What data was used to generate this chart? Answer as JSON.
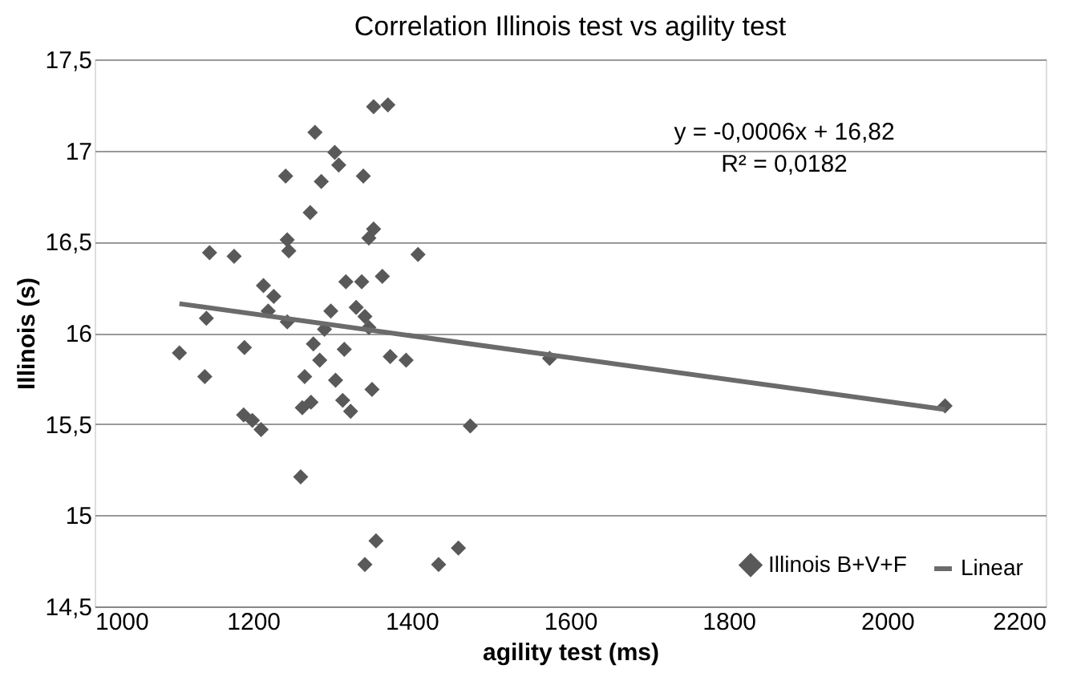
{
  "chart_data": {
    "type": "scatter",
    "title": "Correlation Illinois  test vs agility test",
    "xlabel": "agility test (ms)",
    "ylabel": "Illinois (s)",
    "annotations": [
      "y = -0,0006x + 16,82",
      "R² = 0,0182"
    ],
    "xlim": [
      1000,
      2200
    ],
    "xticks": [
      1000,
      1200,
      1400,
      1600,
      1800,
      2000,
      2200
    ],
    "ylim": [
      14.5,
      17.5
    ],
    "yticks": [
      {
        "value": 14.5,
        "label": "14,5"
      },
      15,
      {
        "value": 15.5,
        "label": "15,5"
      },
      16,
      {
        "value": 16.5,
        "label": "16,5"
      },
      17,
      {
        "value": 17.5,
        "label": "17,5"
      }
    ],
    "grid": "y",
    "legend": "bottom right",
    "series": [
      {
        "name": "Illinois B+V+F",
        "marker": "diamond",
        "color": "#595959",
        "x": [
          1352,
          1370,
          1278,
          1303,
          1308,
          1241,
          1286,
          1339,
          1272,
          1352,
          1346,
          1243,
          1245,
          1145,
          1176,
          1408,
          1317,
          1337,
          1363,
          1213,
          1226,
          1219,
          1243,
          1330,
          1341,
          1346,
          1298,
          1141,
          1290,
          1276,
          1284,
          1315,
          1189,
          1107,
          1139,
          1265,
          1304,
          1350,
          1373,
          1393,
          1262,
          1273,
          1313,
          1323,
          1188,
          1199,
          1210,
          1260,
          1355,
          1341,
          1434,
          1459,
          1474,
          1574,
          2073
        ],
        "values": [
          17.24,
          17.25,
          17.1,
          16.99,
          16.92,
          16.86,
          16.83,
          16.86,
          16.66,
          16.57,
          16.52,
          16.51,
          16.45,
          16.44,
          16.42,
          16.43,
          16.28,
          16.28,
          16.31,
          16.26,
          16.2,
          16.12,
          16.06,
          16.14,
          16.09,
          16.03,
          16.12,
          16.08,
          16.02,
          15.94,
          15.85,
          15.91,
          15.92,
          15.89,
          15.76,
          15.76,
          15.74,
          15.69,
          15.87,
          15.85,
          15.59,
          15.62,
          15.63,
          15.57,
          15.55,
          15.52,
          15.47,
          15.21,
          14.86,
          14.73,
          14.73,
          14.82,
          15.49,
          15.86,
          15.6
        ]
      },
      {
        "name": "Linear",
        "type": "line",
        "color": "#6b6b6b",
        "x": [
          1107,
          2073
        ],
        "values": [
          16.16,
          15.58
        ]
      }
    ]
  }
}
